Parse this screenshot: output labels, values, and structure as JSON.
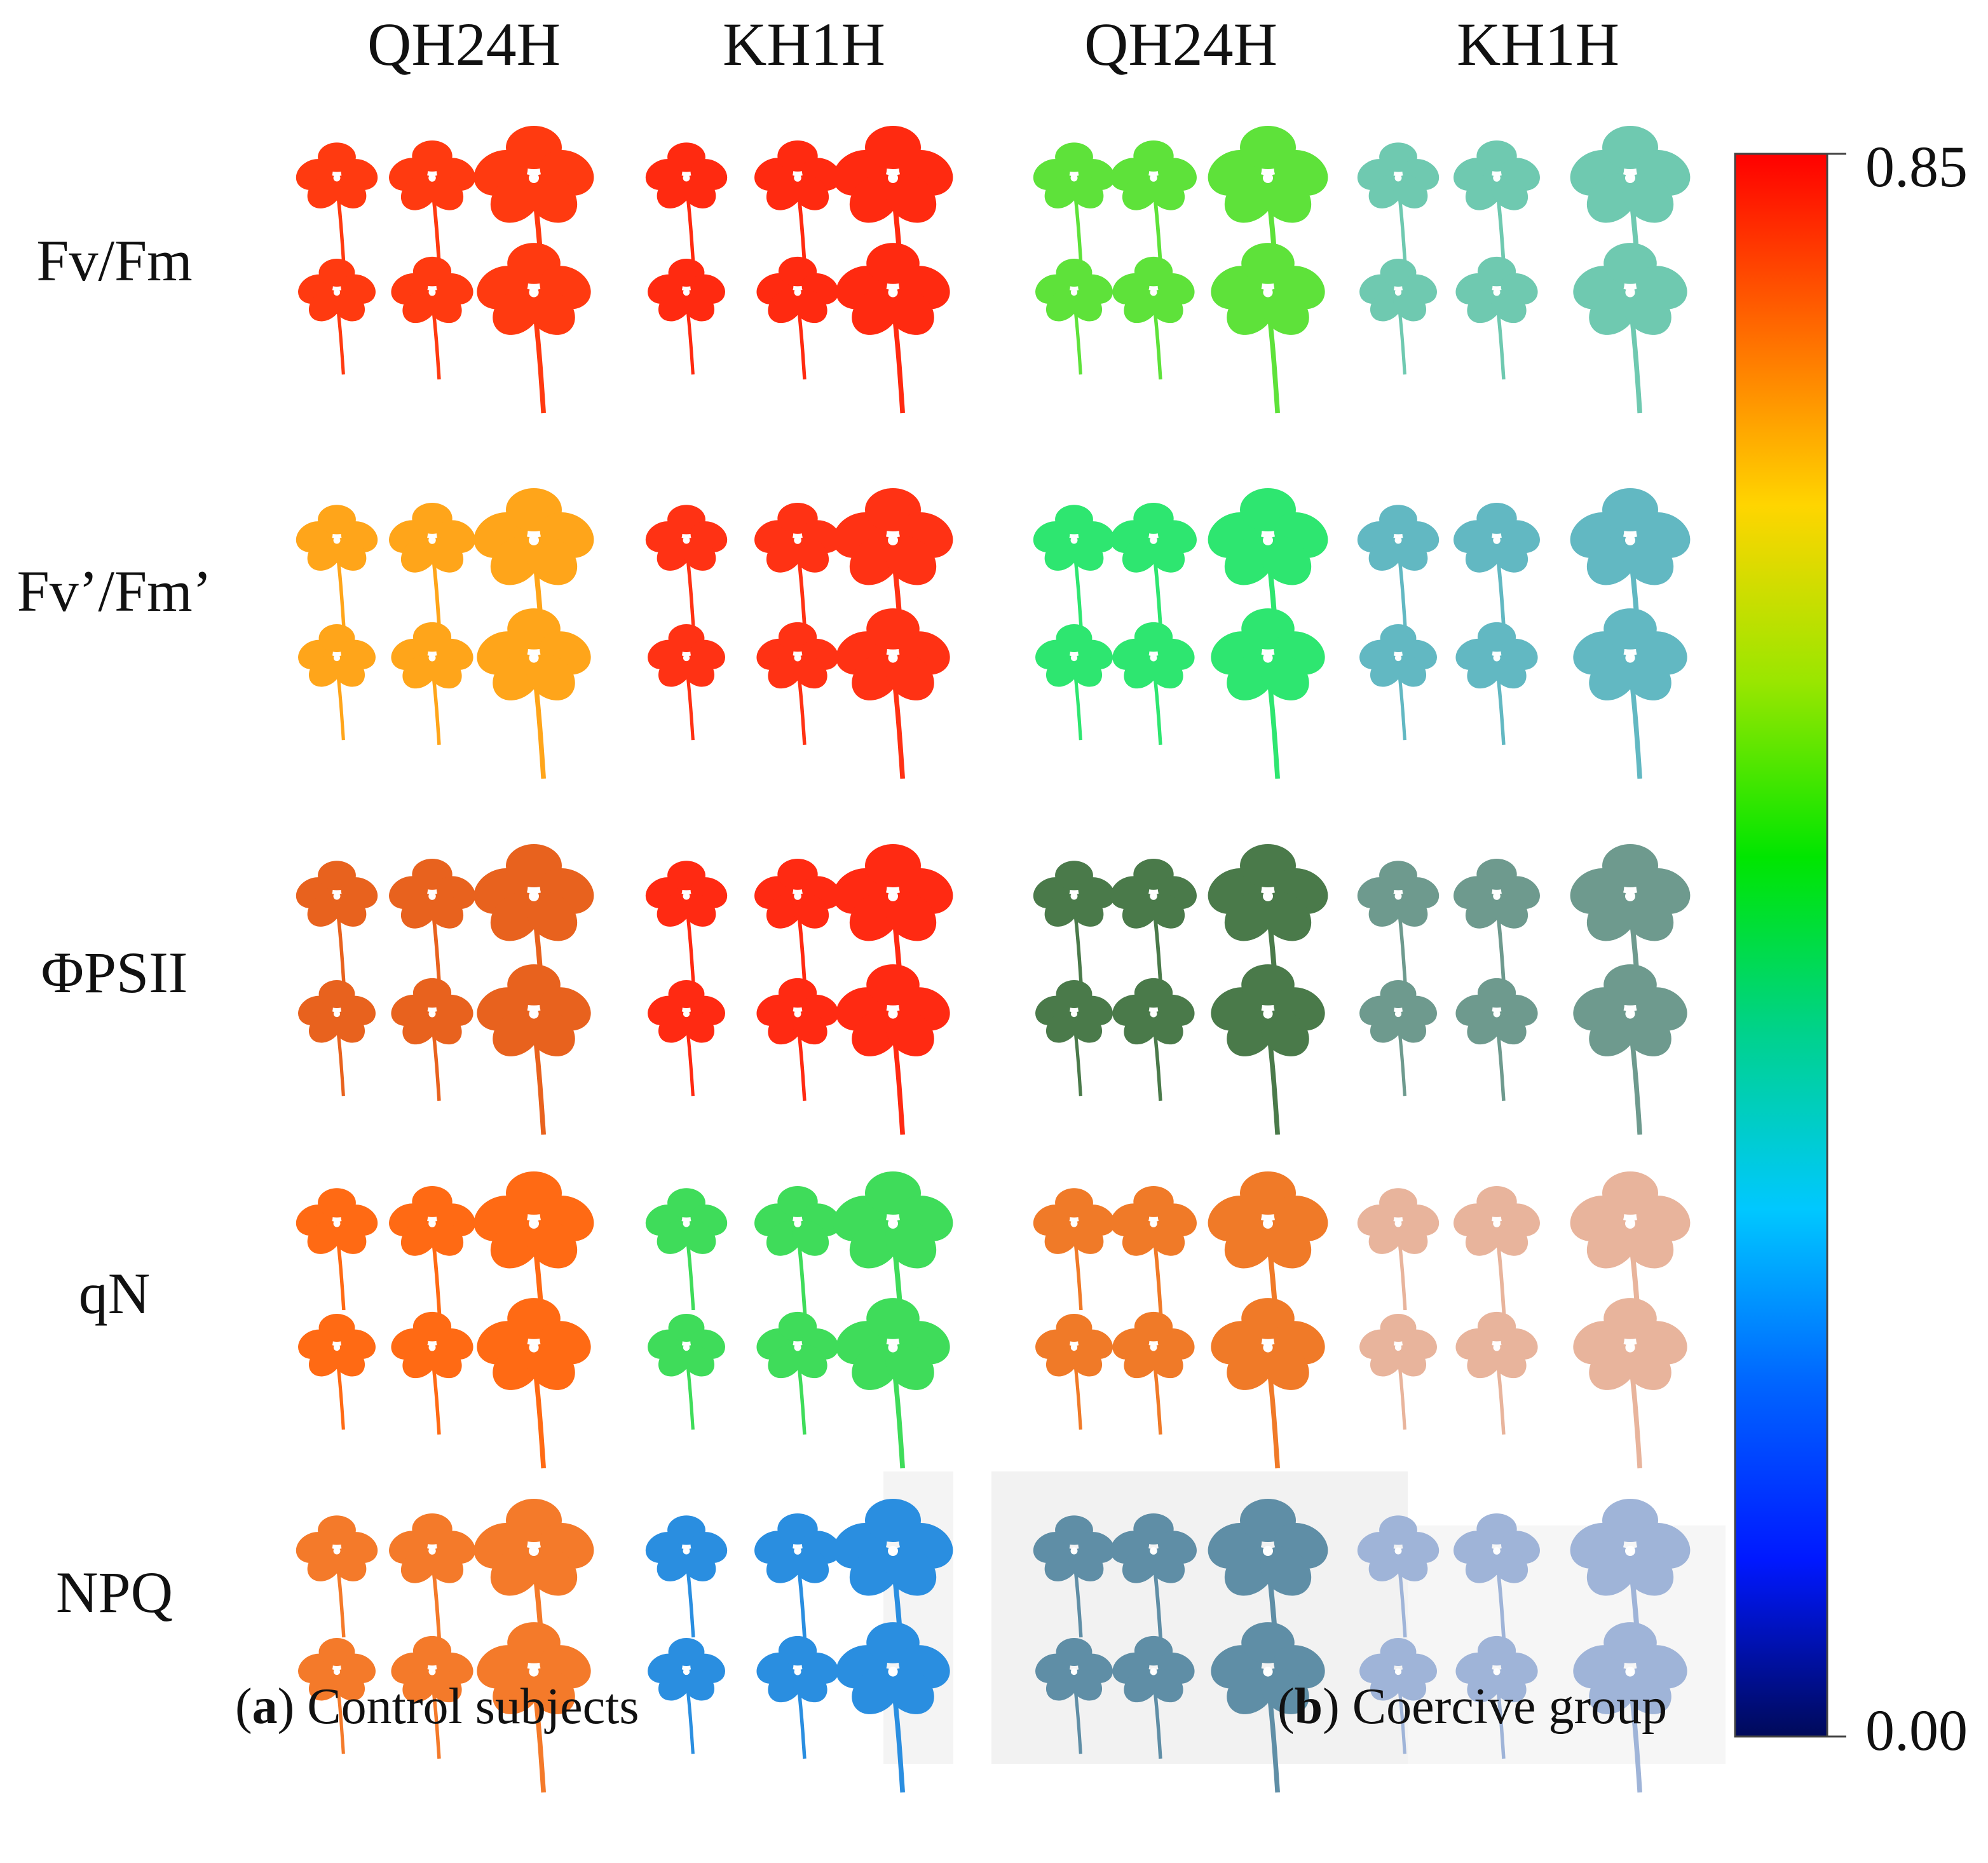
{
  "figure": {
    "column_headers": [
      "QH24H",
      "KH1H",
      "QH24H",
      "KH1H"
    ],
    "row_labels": [
      "Fv/Fm",
      "Fv’/Fm’",
      "ΦPSII",
      "qN",
      "NPQ"
    ],
    "captions": [
      {
        "letter": "a",
        "text": " Control subjects"
      },
      {
        "letter": "b",
        "text": " Coercive group"
      }
    ],
    "colorbar": {
      "max_label": "0.85",
      "min_label": "0.00",
      "stops": [
        "#ff0000",
        "#ff6a00",
        "#ffd500",
        "#9ae600",
        "#00e600",
        "#00d28c",
        "#00c8ff",
        "#0064ff",
        "#0018ff",
        "#000a5a"
      ]
    },
    "leaf_colors": {
      "Fv/Fm": {
        "ctrl_qh": "#ff3a10",
        "ctrl_kh": "#ff2a10",
        "coer_qh": "#5ee23a",
        "coer_kh": "#6fc9b0"
      },
      "Fv’/Fm’": {
        "ctrl_qh": "#ffa51a",
        "ctrl_kh": "#ff3214",
        "coer_qh": "#2ee670",
        "coer_kh": "#62b8c2"
      },
      "ΦPSII": {
        "ctrl_qh": "#e8621e",
        "ctrl_kh": "#ff2a12",
        "coer_qh": "#4a7a4a",
        "coer_kh": "#6e9a8e"
      },
      "qN": {
        "ctrl_qh": "#ff6a14",
        "ctrl_kh": "#3fdc5a",
        "coer_qh": "#f07a28",
        "coer_kh": "#e8b49c"
      },
      "NPQ": {
        "ctrl_qh": "#f47a2a",
        "ctrl_kh": "#2a8ee0",
        "coer_qh": "#5f8ea6",
        "coer_kh": "#9fb4d8"
      }
    }
  }
}
